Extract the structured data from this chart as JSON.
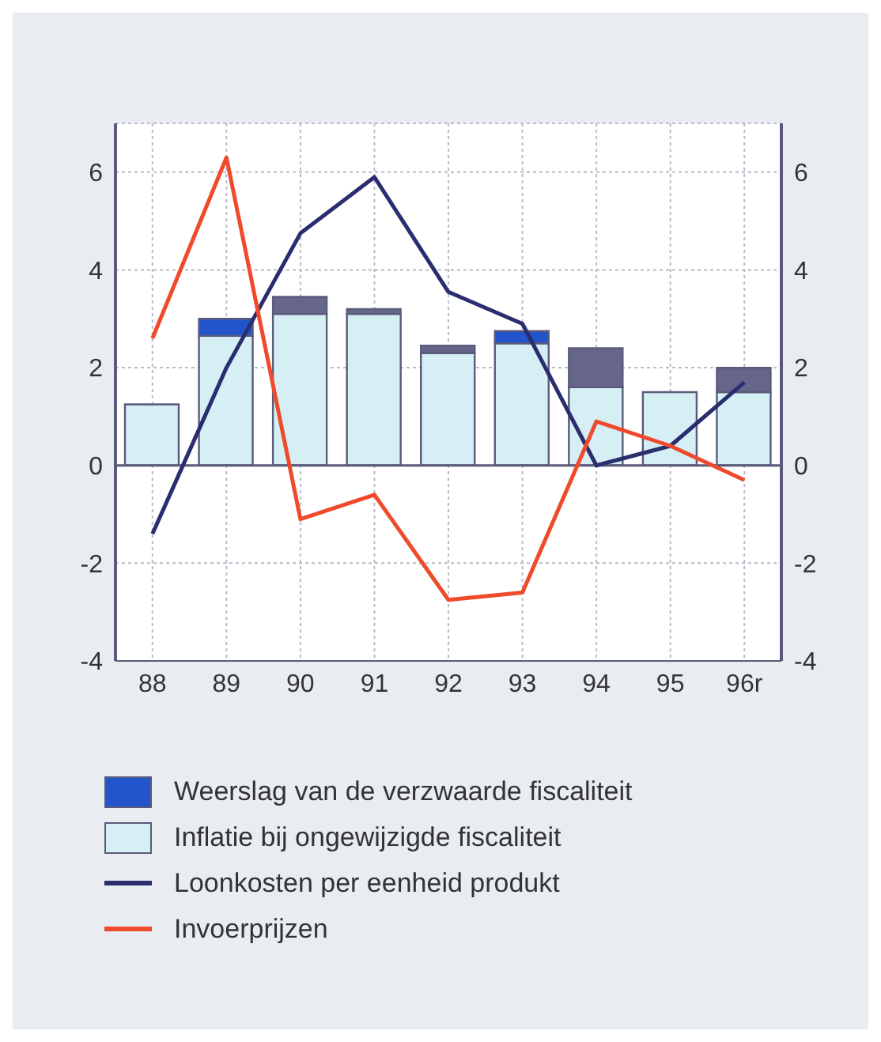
{
  "chart_data": {
    "type": "bar",
    "categories": [
      "88",
      "89",
      "90",
      "91",
      "92",
      "93",
      "94",
      "95",
      "96r"
    ],
    "series": [
      {
        "name": "Inflatie bij ongewijzigde fiscaliteit",
        "color": "#d6eff5",
        "values": [
          1.25,
          2.65,
          3.1,
          3.1,
          2.3,
          2.5,
          1.6,
          1.5,
          1.5
        ]
      },
      {
        "name": "Weerslag van de verzwaarde fiscaliteit",
        "color": "#2255cc",
        "colors": [
          "#2255cc",
          "#2255cc",
          "#66668a",
          "#66668a",
          "#66668a",
          "#2255cc",
          "#66668a",
          "#66668a",
          "#66668a"
        ],
        "values": [
          0,
          0.35,
          0.35,
          0.1,
          0.15,
          0.25,
          0.8,
          0,
          0.5
        ]
      },
      {
        "name": "Loonkosten per eenheid produkt",
        "type": "line",
        "color": "#2a2d6e",
        "values": [
          -1.4,
          2.0,
          4.75,
          5.9,
          3.55,
          2.9,
          0,
          0.4,
          1.7
        ]
      },
      {
        "name": "Invoerprijzen",
        "type": "line",
        "color": "#f04a2c",
        "values": [
          2.6,
          6.3,
          -1.1,
          -0.6,
          -2.75,
          -2.6,
          0.9,
          0.4,
          -0.3
        ]
      }
    ],
    "stacked": true,
    "ylim": [
      -4,
      7
    ],
    "yticks": [
      -4,
      -2,
      0,
      2,
      4,
      6
    ],
    "y2lim": [
      -4,
      7
    ],
    "y2ticks": [
      -4,
      -2,
      0,
      2,
      4,
      6
    ],
    "grid": true,
    "legend": "bottom",
    "marker": "none",
    "line_style": "solid"
  }
}
